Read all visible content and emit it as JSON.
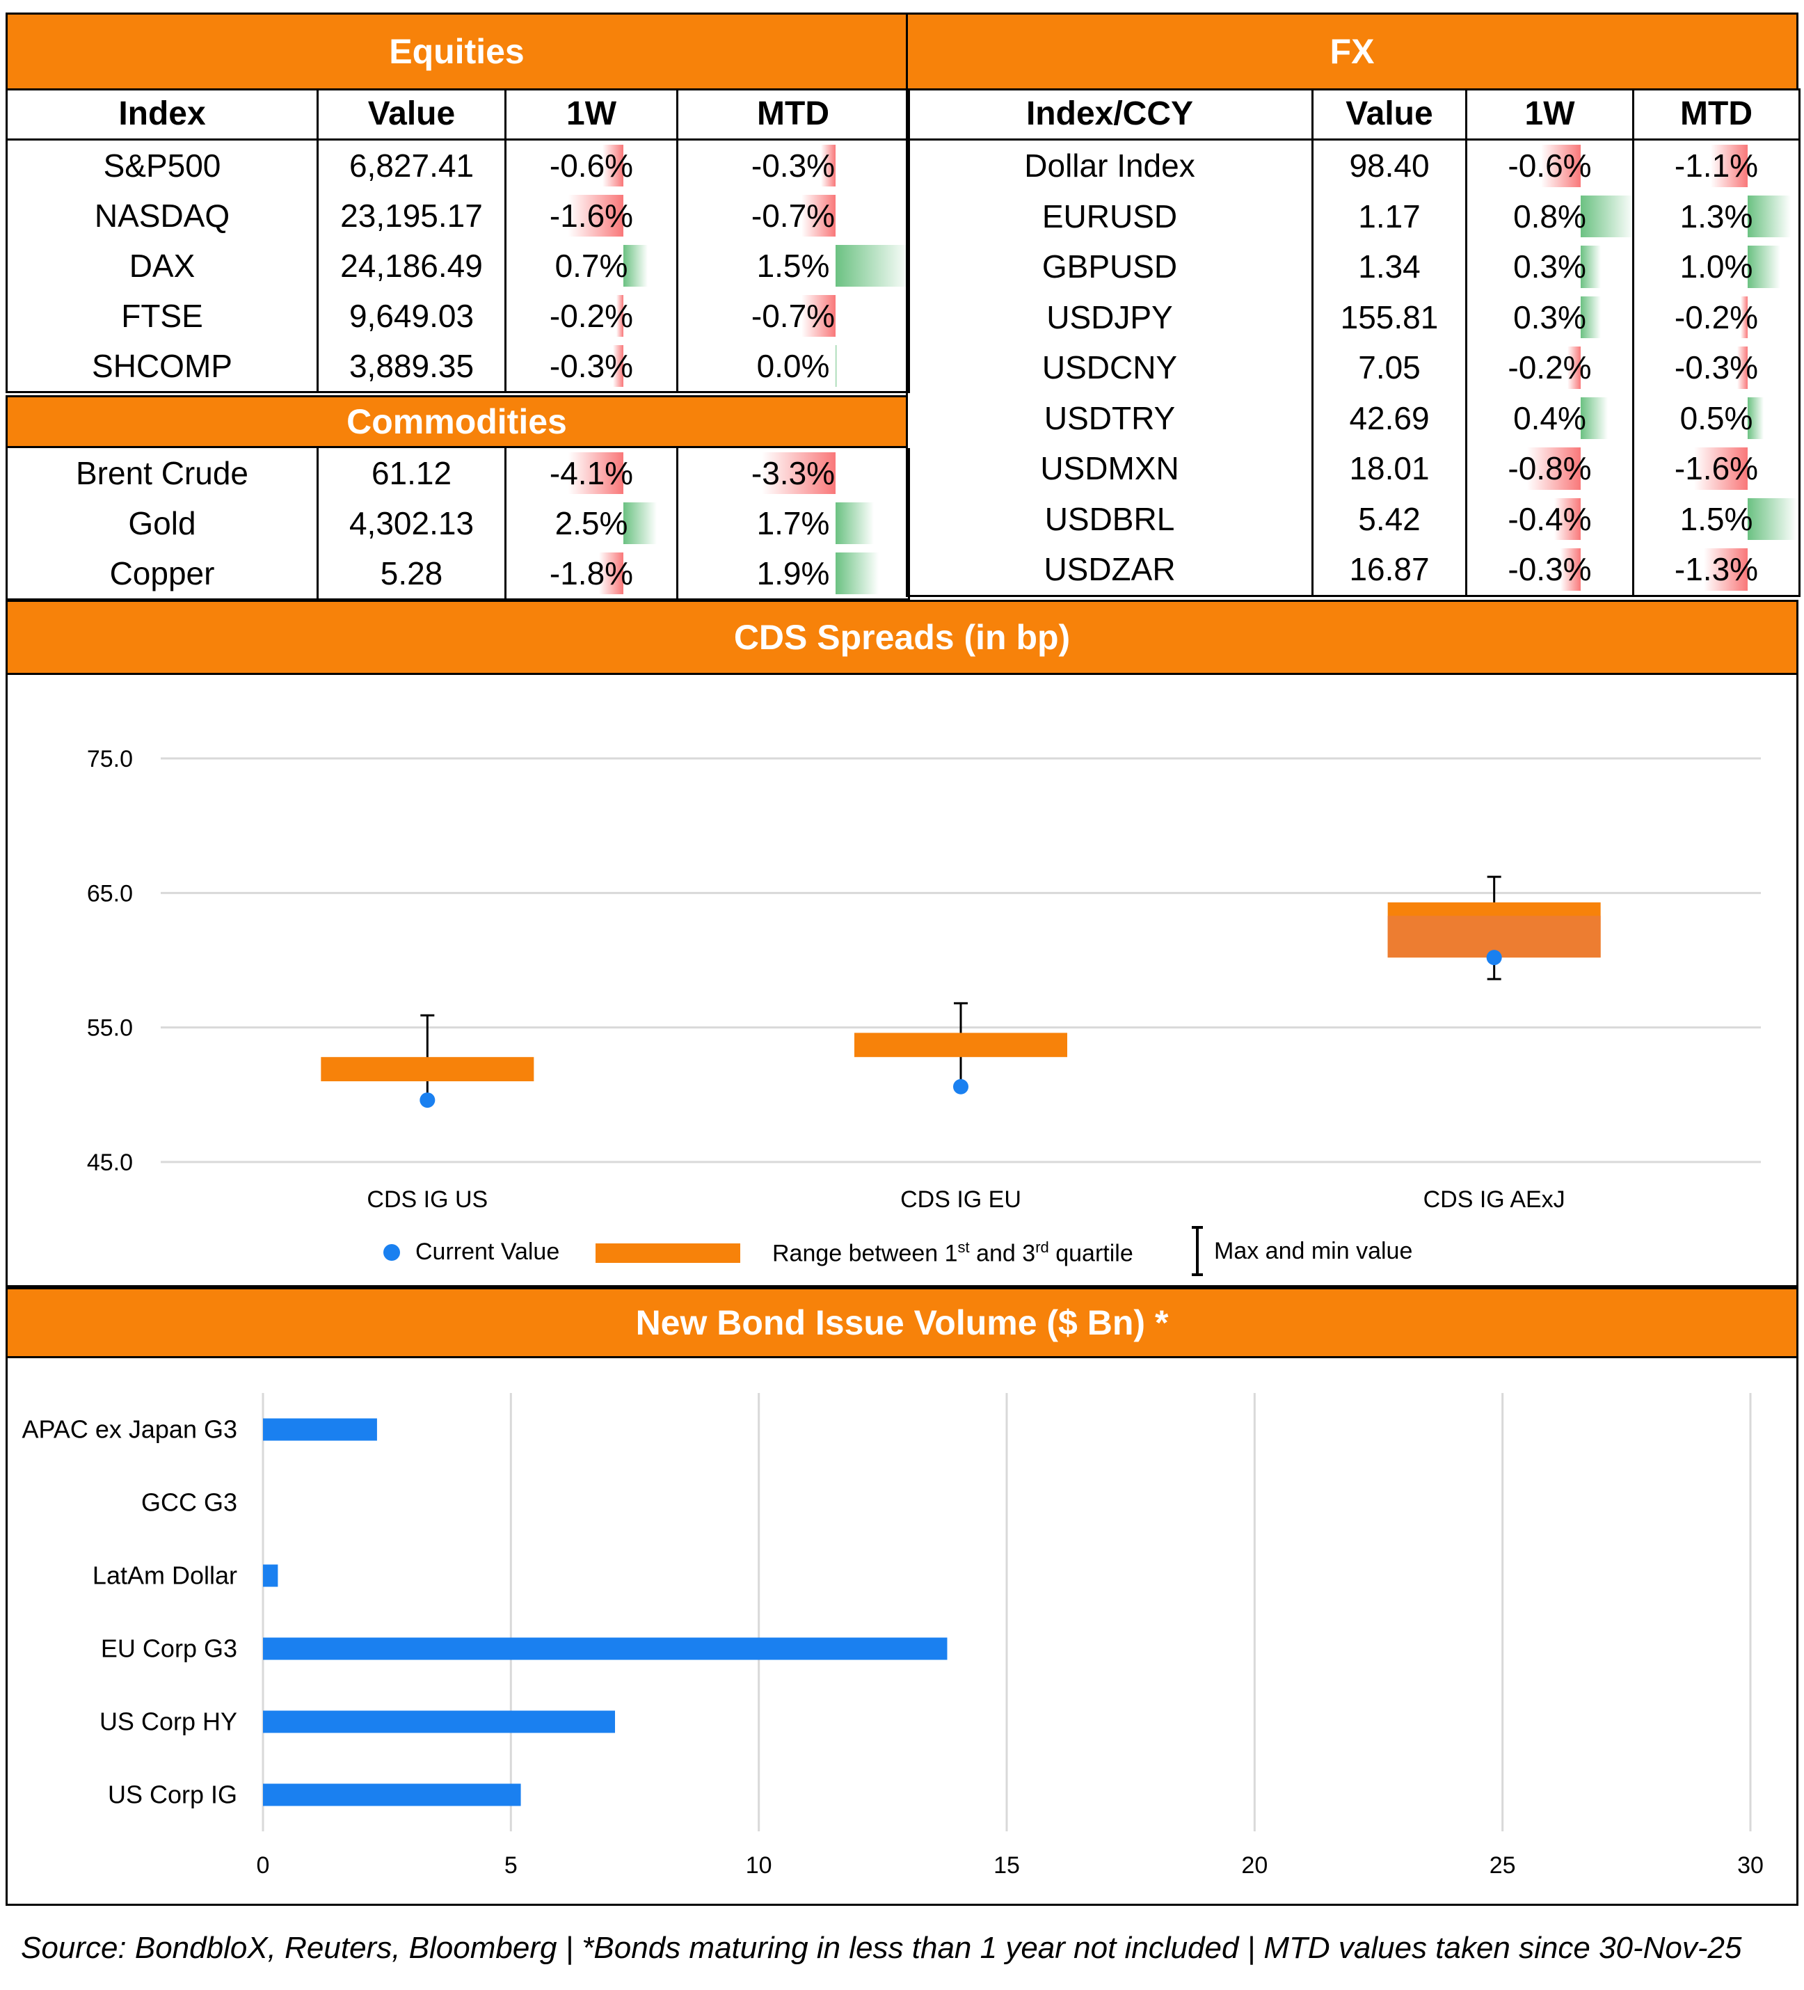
{
  "equities": {
    "title": "Equities",
    "headers": [
      "Index",
      "Value",
      "1W",
      "MTD"
    ],
    "rows": [
      {
        "name": "S&P500",
        "value": "6,827.41",
        "w1": "-0.6%",
        "mtd": "-0.3%",
        "w1_num": -0.6,
        "mtd_num": -0.3
      },
      {
        "name": "NASDAQ",
        "value": "23,195.17",
        "w1": "-1.6%",
        "mtd": "-0.7%",
        "w1_num": -1.6,
        "mtd_num": -0.7
      },
      {
        "name": "DAX",
        "value": "24,186.49",
        "w1": "0.7%",
        "mtd": "1.5%",
        "w1_num": 0.7,
        "mtd_num": 1.5
      },
      {
        "name": "FTSE",
        "value": "9,649.03",
        "w1": "-0.2%",
        "mtd": "-0.7%",
        "w1_num": -0.2,
        "mtd_num": -0.7
      },
      {
        "name": "SHCOMP",
        "value": "3,889.35",
        "w1": "-0.3%",
        "mtd": "0.0%",
        "w1_num": -0.3,
        "mtd_num": 0.02
      }
    ]
  },
  "commodities": {
    "title": "Commodities",
    "rows": [
      {
        "name": "Brent Crude",
        "value": "61.12",
        "w1": "-4.1%",
        "mtd": "-3.3%",
        "w1_num": -4.1,
        "mtd_num": -3.3
      },
      {
        "name": "Gold",
        "value": "4,302.13",
        "w1": "2.5%",
        "mtd": "1.7%",
        "w1_num": 2.5,
        "mtd_num": 1.7
      },
      {
        "name": "Copper",
        "value": "5.28",
        "w1": "-1.8%",
        "mtd": "1.9%",
        "w1_num": -1.8,
        "mtd_num": 1.9
      }
    ]
  },
  "fx": {
    "title": "FX",
    "headers": [
      "Index/CCY",
      "Value",
      "1W",
      "MTD"
    ],
    "rows": [
      {
        "name": "Dollar Index",
        "value": "98.40",
        "w1": "-0.6%",
        "mtd": "-1.1%",
        "w1_num": -0.6,
        "mtd_num": -1.1
      },
      {
        "name": "EURUSD",
        "value": "1.17",
        "w1": "0.8%",
        "mtd": "1.3%",
        "w1_num": 0.8,
        "mtd_num": 1.3
      },
      {
        "name": "GBPUSD",
        "value": "1.34",
        "w1": "0.3%",
        "mtd": "1.0%",
        "w1_num": 0.3,
        "mtd_num": 1.0
      },
      {
        "name": "USDJPY",
        "value": "155.81",
        "w1": "0.3%",
        "mtd": "-0.2%",
        "w1_num": 0.3,
        "mtd_num": -0.2
      },
      {
        "name": "USDCNY",
        "value": "7.05",
        "w1": "-0.2%",
        "mtd": "-0.3%",
        "w1_num": -0.2,
        "mtd_num": -0.3
      },
      {
        "name": "USDTRY",
        "value": "42.69",
        "w1": "0.4%",
        "mtd": "0.5%",
        "w1_num": 0.4,
        "mtd_num": 0.5
      },
      {
        "name": "USDMXN",
        "value": "18.01",
        "w1": "-0.8%",
        "mtd": "-1.6%",
        "w1_num": -0.8,
        "mtd_num": -1.6
      },
      {
        "name": "USDBRL",
        "value": "5.42",
        "w1": "-0.4%",
        "mtd": "1.5%",
        "w1_num": -0.4,
        "mtd_num": 1.5
      },
      {
        "name": "USDZAR",
        "value": "16.87",
        "w1": "-0.3%",
        "mtd": "-1.3%",
        "w1_num": -0.3,
        "mtd_num": -1.3
      }
    ]
  },
  "cds": {
    "title": "CDS Spreads (in bp)"
  },
  "bonds": {
    "title": "New Bond Issue Volume ($ Bn) *"
  },
  "chart_data": [
    {
      "type": "box",
      "title": "CDS Spreads (in bp)",
      "categories": [
        "CDS IG US",
        "CDS IG EU",
        "CDS IG AExJ"
      ],
      "yticks": [
        "75.0",
        "65.0",
        "55.0",
        "45.0"
      ],
      "ylim": [
        45,
        75
      ],
      "series": [
        {
          "name": "Current Value",
          "values": [
            49.6,
            50.6,
            60.2
          ]
        },
        {
          "name": "Range between 1st and 3rd quartile",
          "q1": [
            51.0,
            52.8,
            60.2
          ],
          "q3": [
            52.8,
            54.6,
            64.3
          ]
        },
        {
          "name": "Max and min value",
          "max": [
            55.9,
            56.8,
            66.2
          ],
          "min": [
            49.6,
            50.6,
            58.6
          ]
        }
      ],
      "legend": {
        "current": "Current Value",
        "range_prefix": "Range between 1",
        "range_sup1": "st",
        "range_mid": " and 3",
        "range_sup2": "rd",
        "range_suffix": " quartile",
        "maxmin": "Max and min value"
      },
      "colors": {
        "box": "#F7820A",
        "box_lower": "#ED7D31",
        "dot": "#1A80F0"
      }
    },
    {
      "type": "bar",
      "orientation": "horizontal",
      "title": "New Bond Issue Volume ($ Bn) *",
      "categories": [
        "APAC ex Japan G3",
        "GCC G3",
        "LatAm Dollar",
        "EU Corp G3",
        "US Corp HY",
        "US Corp IG"
      ],
      "values": [
        2.3,
        0,
        0.3,
        13.8,
        7.1,
        5.2
      ],
      "xticks": [
        "0",
        "5",
        "10",
        "15",
        "20",
        "25",
        "30"
      ],
      "xlim": [
        0,
        30
      ],
      "colors": {
        "bar": "#1A80F0"
      }
    }
  ],
  "footer": {
    "source": "Source: BondbloX, Reuters, Bloomberg | *Bonds maturing in less than 1 year not included | MTD values taken since 30-Nov-25"
  }
}
